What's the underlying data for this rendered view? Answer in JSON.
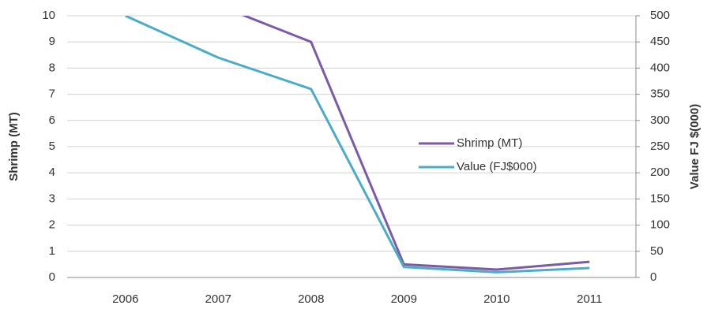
{
  "chart_data": {
    "type": "line",
    "categories": [
      "2006",
      "2007",
      "2008",
      "2009",
      "2010",
      "2011"
    ],
    "series": [
      {
        "name": "Shrimp (MT)",
        "color": "#7b5aa6",
        "values": [
          null,
          10.4,
          9,
          0.5,
          0.3,
          0.6
        ]
      },
      {
        "name": "Value (FJ$000)",
        "color": "#4bacc6",
        "values": [
          500,
          420,
          360,
          20,
          10,
          18
        ],
        "axis": "y2"
      }
    ],
    "ylabel": "Shrimp (MT)",
    "y2label": "Value FJ $(000)",
    "ylim": [
      0,
      10
    ],
    "yticks": [
      0,
      1,
      2,
      3,
      4,
      5,
      6,
      7,
      8,
      9,
      10
    ],
    "y2lim": [
      0,
      500
    ],
    "y2ticks": [
      0,
      50,
      100,
      150,
      200,
      250,
      300,
      350,
      400,
      450,
      500
    ],
    "grid": true,
    "legend": "center"
  }
}
